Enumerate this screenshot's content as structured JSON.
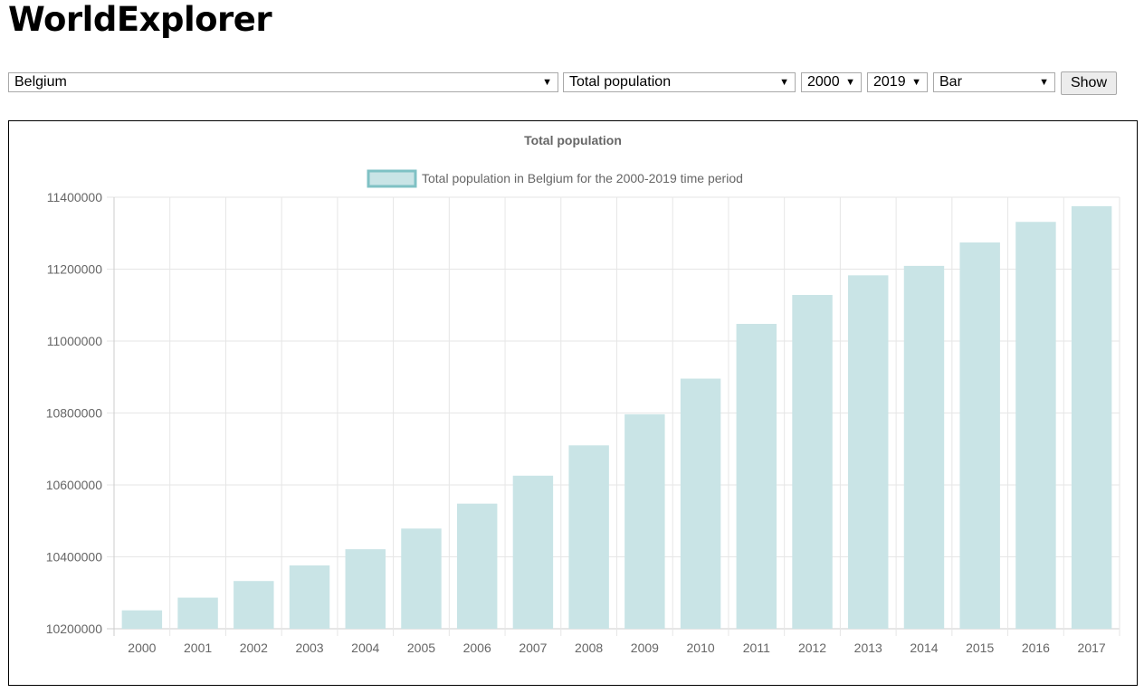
{
  "app": {
    "title": "WorldExplorer"
  },
  "controls": {
    "country": "Belgium",
    "indicator": "Total population",
    "start_year": "2000",
    "end_year": "2019",
    "chart_type": "Bar",
    "show_label": "Show"
  },
  "colors": {
    "bar_fill": "#c9e4e6",
    "legend_border": "#7fc1c4",
    "grid": "#e6e6e6",
    "tick_text": "#666666"
  },
  "chart_data": {
    "type": "bar",
    "title": "Total population",
    "legend": [
      "Total population in Belgium for the 2000-2019 time period"
    ],
    "legend_position": "top",
    "grid": true,
    "ylim": [
      10200000,
      11400000
    ],
    "yticks": [
      10200000,
      10400000,
      10600000,
      10800000,
      11000000,
      11200000,
      11400000
    ],
    "yticklabels": [
      "10200000",
      "10400000",
      "10600000",
      "10800000",
      "11000000",
      "11200000",
      "11400000"
    ],
    "categories": [
      "2000",
      "2001",
      "2002",
      "2003",
      "2004",
      "2005",
      "2006",
      "2007",
      "2008",
      "2009",
      "2010",
      "2011",
      "2012",
      "2013",
      "2014",
      "2015",
      "2016",
      "2017"
    ],
    "series": [
      {
        "name": "Total population in Belgium for the 2000-2019 time period",
        "values": [
          10251250,
          10286570,
          10332785,
          10376133,
          10421137,
          10478617,
          10547958,
          10625700,
          10709973,
          10796493,
          10895586,
          11047744,
          11128246,
          11182817,
          11209057,
          11274196,
          11331422,
          11375158
        ]
      }
    ]
  }
}
